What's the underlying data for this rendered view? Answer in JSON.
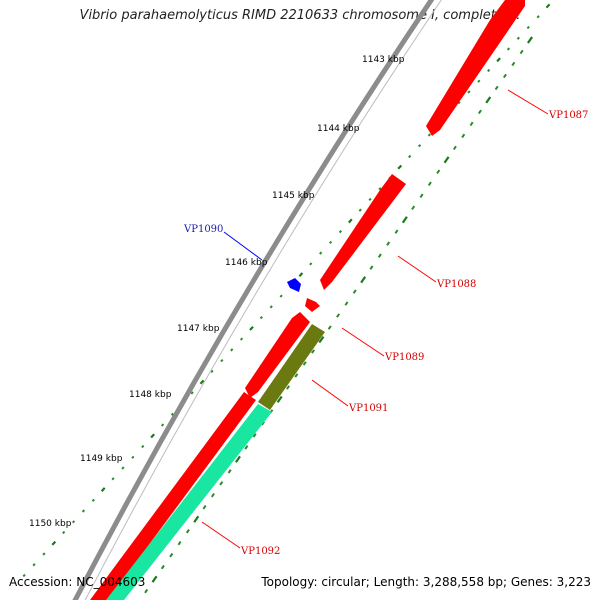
{
  "title": "Vibrio parahaemolyticus RIMD 2210633 chromosome I, complete ...",
  "footer": {
    "accession": "Accession: NC_004603",
    "summary": "Topology: circular; Length: 3,288,558 bp; Genes: 3,223"
  },
  "colors": {
    "backbone": "#8c8c8c",
    "tick_major": "#1a7a1a",
    "tick_dot": "#2a8a2a",
    "gene_red": "#ff0000",
    "gene_blue": "#0000ff",
    "gene_olive": "#6b7a10",
    "gene_aqua": "#19e6a0",
    "label_red": "#d40000",
    "label_blue": "#1a1ab0"
  },
  "position_ticks": [
    {
      "label": "1143 kbp"
    },
    {
      "label": "1144 kbp"
    },
    {
      "label": "1145 kbp"
    },
    {
      "label": "1146 kbp"
    },
    {
      "label": "1147 kbp"
    },
    {
      "label": "1148 kbp"
    },
    {
      "label": "1149 kbp"
    },
    {
      "label": "1150 kbp"
    }
  ],
  "genes": [
    {
      "name": "VP1087",
      "color": "red"
    },
    {
      "name": "VP1088",
      "color": "red"
    },
    {
      "name": "VP1089",
      "color": "red"
    },
    {
      "name": "VP1090",
      "color": "blue"
    },
    {
      "name": "VP1091",
      "color": "olive"
    },
    {
      "name": "VP1092",
      "color": "red"
    }
  ]
}
